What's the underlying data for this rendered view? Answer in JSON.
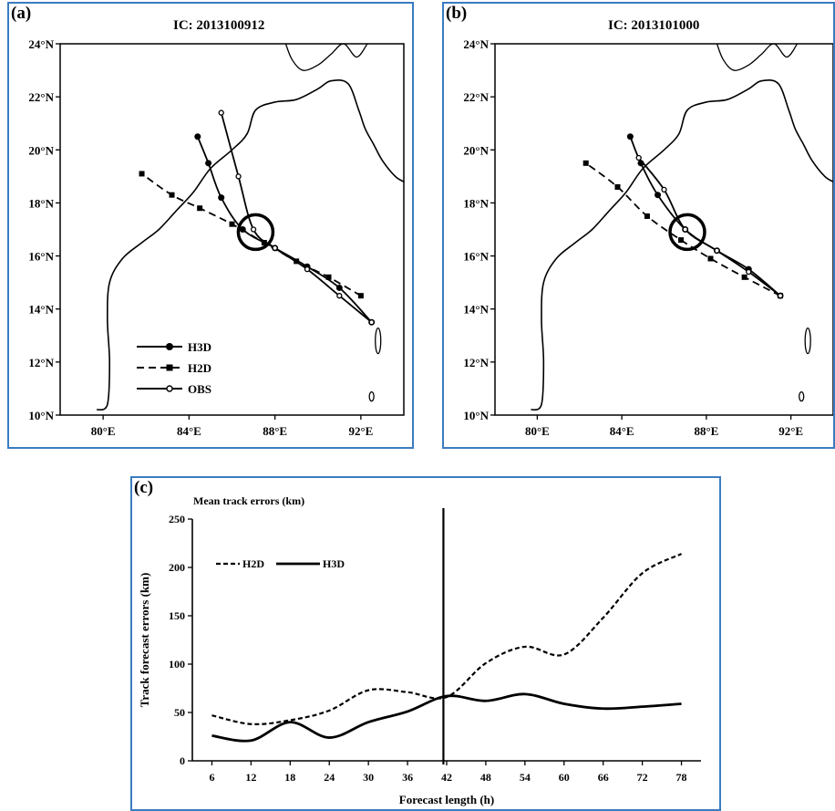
{
  "panels": {
    "a": {
      "label": "(a)",
      "title": "IC: 2013100912"
    },
    "b": {
      "label": "(b)",
      "title": "IC: 2013101000"
    },
    "c": {
      "label": "(c)",
      "title": "Mean track errors (km)"
    }
  },
  "legend_a": {
    "h3d": "H3D",
    "h2d": "H2D",
    "obs": "OBS"
  },
  "chart_data": [
    {
      "type": "map-track",
      "title": "IC: 2013100912",
      "x_ticks": [
        "80°E",
        "84°E",
        "88°E",
        "92°E"
      ],
      "y_ticks": [
        "10°N",
        "12°N",
        "14°N",
        "16°N",
        "18°N",
        "20°N",
        "22°N",
        "24°N"
      ],
      "xlim": [
        78,
        94
      ],
      "ylim": [
        10,
        24
      ],
      "series": [
        {
          "name": "H3D",
          "lon": [
            92.5,
            91.0,
            89.5,
            88.0,
            86.5,
            85.5,
            84.9,
            84.4
          ],
          "lat": [
            13.5,
            14.8,
            15.6,
            16.3,
            17.0,
            18.2,
            19.5,
            20.5
          ]
        },
        {
          "name": "H2D",
          "lon": [
            92.0,
            90.5,
            89.0,
            87.5,
            86.0,
            84.5,
            83.2,
            81.8
          ],
          "lat": [
            14.5,
            15.2,
            15.8,
            16.5,
            17.2,
            17.8,
            18.3,
            19.1
          ]
        },
        {
          "name": "OBS",
          "lon": [
            92.5,
            91.0,
            89.5,
            88.0,
            87.0,
            86.3,
            85.5
          ],
          "lat": [
            13.5,
            14.5,
            15.5,
            16.3,
            17.0,
            19.0,
            21.4
          ]
        }
      ],
      "landfall_circle": {
        "lon": 87.1,
        "lat": 16.9
      }
    },
    {
      "type": "map-track",
      "title": "IC: 2013101000",
      "x_ticks": [
        "80°E",
        "84°E",
        "88°E",
        "92°E"
      ],
      "y_ticks": [
        "10°N",
        "12°N",
        "14°N",
        "16°N",
        "18°N",
        "20°N",
        "22°N",
        "24°N"
      ],
      "xlim": [
        78,
        94
      ],
      "ylim": [
        10,
        24
      ],
      "series": [
        {
          "name": "H3D",
          "lon": [
            91.5,
            90.0,
            88.5,
            87.0,
            85.7,
            84.9,
            84.4
          ],
          "lat": [
            14.5,
            15.5,
            16.2,
            17.0,
            18.3,
            19.5,
            20.5
          ]
        },
        {
          "name": "H2D",
          "lon": [
            91.5,
            89.8,
            88.2,
            86.8,
            85.2,
            83.8,
            82.3
          ],
          "lat": [
            14.5,
            15.2,
            15.9,
            16.6,
            17.5,
            18.6,
            19.5
          ]
        },
        {
          "name": "OBS",
          "lon": [
            91.5,
            90.0,
            88.5,
            87.0,
            86.0,
            84.8
          ],
          "lat": [
            14.5,
            15.4,
            16.2,
            17.0,
            18.5,
            19.7
          ]
        }
      ],
      "landfall_circle": {
        "lon": 87.1,
        "lat": 16.9
      }
    },
    {
      "type": "line",
      "title": "Mean track errors (km)",
      "xlabel": "Forecast length (h)",
      "ylabel": "Track forecast errors (km)",
      "x": [
        6,
        12,
        18,
        24,
        30,
        36,
        42,
        48,
        54,
        60,
        66,
        72,
        78
      ],
      "ylim": [
        0,
        250
      ],
      "yticks": [
        0,
        50,
        100,
        150,
        200,
        250
      ],
      "vline_x": 41.5,
      "series": [
        {
          "name": "H2D",
          "values": [
            47,
            38,
            42,
            52,
            73,
            71,
            66,
            101,
            118,
            110,
            148,
            194,
            214
          ]
        },
        {
          "name": "H3D",
          "values": [
            26,
            21,
            40,
            24,
            40,
            51,
            67,
            62,
            69,
            59,
            54,
            56,
            59
          ]
        }
      ]
    }
  ]
}
